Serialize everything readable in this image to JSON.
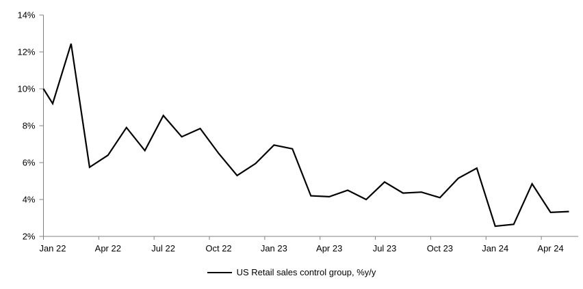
{
  "chart_data": {
    "type": "line",
    "title": "",
    "xlabel": "",
    "ylabel": "",
    "x": [
      "Jan 22",
      "Feb 22",
      "Mar 22",
      "Apr 22",
      "May 22",
      "Jun 22",
      "Jul 22",
      "Aug 22",
      "Sep 22",
      "Oct 22",
      "Nov 22",
      "Dec 22",
      "Jan 23",
      "Feb 23",
      "Mar 23",
      "Apr 23",
      "May 23",
      "Jun 23",
      "Jul 23",
      "Aug 23",
      "Sep 23",
      "Oct 23",
      "Nov 23",
      "Dec 23",
      "Jan 24",
      "Feb 24",
      "Mar 24",
      "Apr 24",
      "May 24"
    ],
    "series": [
      {
        "name": "US Retail sales control group, %y/y",
        "color": "#000000",
        "values": [
          9.2,
          12.45,
          5.75,
          6.4,
          7.9,
          6.65,
          8.55,
          7.4,
          7.85,
          6.5,
          5.3,
          5.95,
          6.95,
          6.75,
          4.2,
          4.15,
          4.5,
          4.0,
          4.95,
          4.35,
          4.4,
          4.1,
          5.15,
          5.7,
          2.55,
          2.65,
          4.85,
          3.3,
          3.35
        ]
      }
    ],
    "axis_entry_value": 10.0,
    "ylim": [
      2,
      14
    ],
    "y_tick_step": 2,
    "y_tick_labels": [
      "14%",
      "12%",
      "10%",
      "8%",
      "6%",
      "4%",
      "2%"
    ],
    "x_tick_labels": [
      "Jan 22",
      "Apr 22",
      "Jul 22",
      "Oct 22",
      "Jan 23",
      "Apr 23",
      "Jul 23",
      "Oct 23",
      "Jan 24",
      "Apr 24"
    ],
    "x_tick_every": 3,
    "grid": false,
    "legend_position": "bottom-center",
    "axis_color": "#808080",
    "text_color": "#000000",
    "line_width": 2.2
  },
  "legend": {
    "label": "US Retail sales control group, %y/y"
  }
}
